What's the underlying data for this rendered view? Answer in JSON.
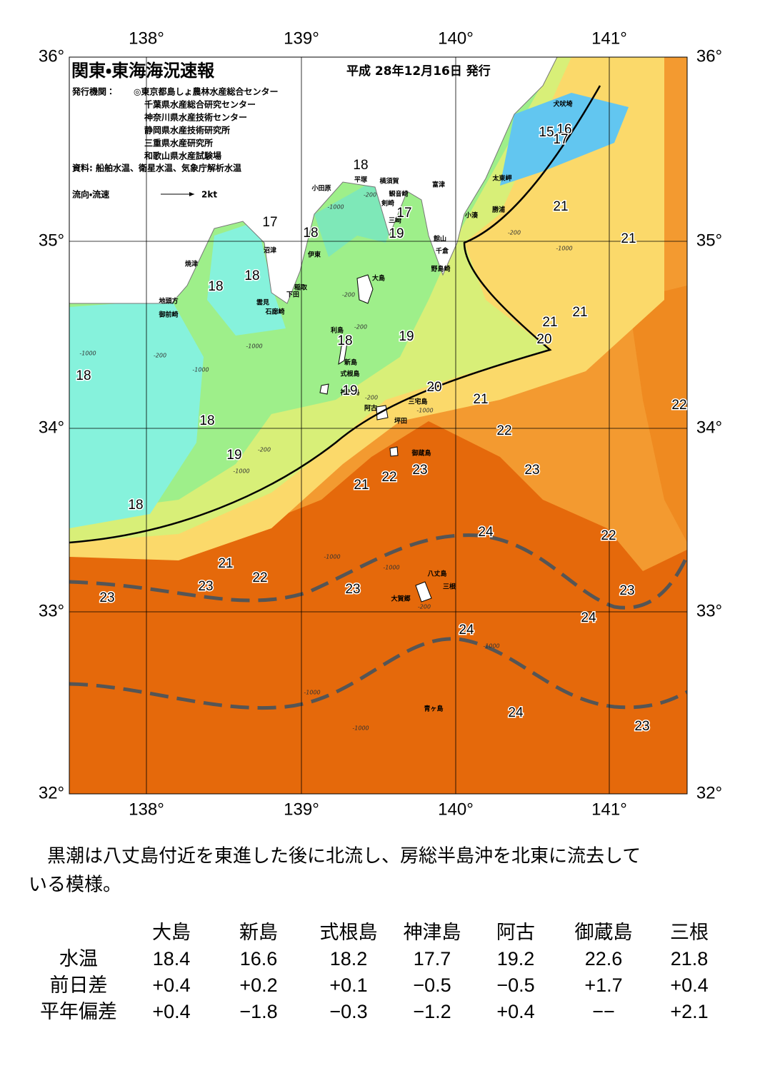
{
  "header": {
    "title": "関東・東海海況速報",
    "date": "平成 28年12月16日 発行",
    "issuer_label": "発行機関：",
    "issuers": [
      "◎東京都島しょ農林水産総合センター",
      "千葉県水産総合研究センター",
      "神奈川県水産技術センター",
      "静岡県水産技術研究所",
      "三重県水産研究所",
      "和歌山県水産試験場"
    ],
    "source": "資料: 船舶水温、衛星水温、気象庁解析水温",
    "legend": "流向・流速",
    "legend_scale": "2kt"
  },
  "map": {
    "lon_labels": [
      "138°",
      "139°",
      "140°",
      "141°"
    ],
    "lat_labels": [
      "36°",
      "35°",
      "34°",
      "33°",
      "32°"
    ],
    "contour_labels": [
      "18",
      "17",
      "18",
      "17",
      "19",
      "18",
      "18",
      "21",
      "21",
      "21",
      "21",
      "20",
      "19",
      "18",
      "18",
      "20",
      "19",
      "21",
      "22",
      "18",
      "22",
      "19",
      "23",
      "23",
      "22",
      "21",
      "18",
      "24",
      "22",
      "21",
      "22",
      "23",
      "23",
      "23",
      "23",
      "24",
      "24",
      "24",
      "23",
      "15",
      "16",
      "17"
    ],
    "places": [
      "犬吠埼",
      "太東岬",
      "勝浦",
      "小湊",
      "富津",
      "横須賀",
      "観音崎",
      "平塚",
      "小田原",
      "剣崎",
      "三崎",
      "館山",
      "千倉",
      "野島崎",
      "沼津",
      "伊東",
      "焼津",
      "稲取",
      "下田",
      "雲見",
      "石廊崎",
      "地頭方",
      "御前崎",
      "大島",
      "利島",
      "新島",
      "式根島",
      "神津島",
      "三宅島",
      "阿古",
      "坪田",
      "御蔵島",
      "八丈島",
      "三根",
      "大賀郷",
      "青ヶ島"
    ],
    "depth_labels": [
      "-200",
      "-1000",
      "-200",
      "-1000",
      "-200",
      "-200",
      "-1000",
      "-200",
      "-1000",
      "-1000",
      "-200",
      "-1000",
      "-200",
      "-1000",
      "-1000",
      "-1000",
      "-200",
      "-1000",
      "-1000",
      "-1000"
    ]
  },
  "summary": {
    "lines": [
      "　黒潮は八丈島付近を東進した後に北流し、房総半島沖を北東に流去して",
      "いる模様。"
    ]
  },
  "table": {
    "columns": [
      "大島",
      "新島",
      "式根島",
      "神津島",
      "阿古",
      "御蔵島",
      "三根"
    ],
    "rows": [
      {
        "label": "水温",
        "values": [
          "18.4",
          "16.6",
          "18.2",
          "17.7",
          "19.2",
          "22.6",
          "21.8"
        ]
      },
      {
        "label": "前日差",
        "values": [
          "+0.4",
          "+0.2",
          "+0.1",
          "−0.5",
          "−0.5",
          "+1.7",
          "+0.4"
        ]
      },
      {
        "label": "平年偏差",
        "values": [
          "+0.4",
          "−1.8",
          "−0.3",
          "−1.2",
          "+0.4",
          "−−",
          "+2.1"
        ]
      }
    ]
  }
}
